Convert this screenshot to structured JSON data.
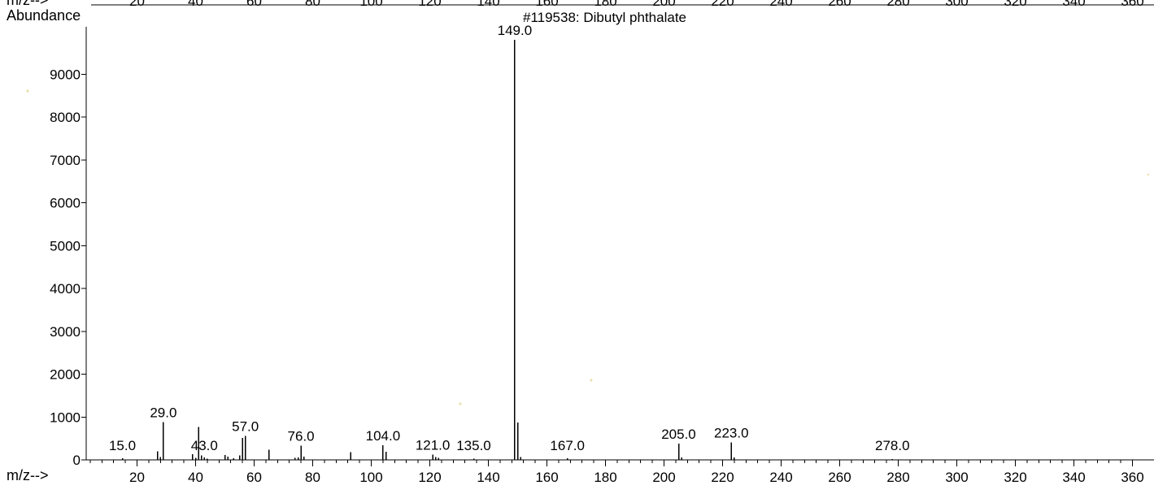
{
  "chart_data": {
    "type": "bar",
    "title": "#119538: Dibutyl phthalate",
    "ylabel": "Abundance",
    "xlabel": "m/z-->",
    "top_axis_label": "m/z-->",
    "xlim": [
      2,
      362
    ],
    "ylim": [
      0,
      10000
    ],
    "yticks": [
      0,
      1000,
      2000,
      3000,
      4000,
      5000,
      6000,
      7000,
      8000,
      9000
    ],
    "ytick_labels": [
      "0",
      "1000",
      "2000",
      "3000",
      "4000",
      "5000",
      "6000",
      "7000",
      "8000",
      "9000"
    ],
    "xticks": [
      20,
      40,
      60,
      80,
      100,
      120,
      140,
      160,
      180,
      200,
      220,
      240,
      260,
      280,
      300,
      320,
      340,
      360
    ],
    "xtick_labels": [
      "20",
      "40",
      "60",
      "80",
      "100",
      "120",
      "140",
      "160",
      "180",
      "200",
      "220",
      "240",
      "260",
      "280",
      "300",
      "320",
      "340",
      "360"
    ],
    "grid": false,
    "peaks": [
      {
        "mz": 15,
        "abundance": 40
      },
      {
        "mz": 27,
        "abundance": 200
      },
      {
        "mz": 28,
        "abundance": 70
      },
      {
        "mz": 29,
        "abundance": 880
      },
      {
        "mz": 39,
        "abundance": 130
      },
      {
        "mz": 40,
        "abundance": 50
      },
      {
        "mz": 41,
        "abundance": 770
      },
      {
        "mz": 42,
        "abundance": 100
      },
      {
        "mz": 43,
        "abundance": 60
      },
      {
        "mz": 44,
        "abundance": 30
      },
      {
        "mz": 50,
        "abundance": 110
      },
      {
        "mz": 51,
        "abundance": 80
      },
      {
        "mz": 53,
        "abundance": 40
      },
      {
        "mz": 55,
        "abundance": 100
      },
      {
        "mz": 56,
        "abundance": 510
      },
      {
        "mz": 57,
        "abundance": 560
      },
      {
        "mz": 65,
        "abundance": 240
      },
      {
        "mz": 74,
        "abundance": 50
      },
      {
        "mz": 75,
        "abundance": 60
      },
      {
        "mz": 76,
        "abundance": 330
      },
      {
        "mz": 77,
        "abundance": 80
      },
      {
        "mz": 93,
        "abundance": 180
      },
      {
        "mz": 104,
        "abundance": 340
      },
      {
        "mz": 105,
        "abundance": 190
      },
      {
        "mz": 121,
        "abundance": 120
      },
      {
        "mz": 122,
        "abundance": 70
      },
      {
        "mz": 123,
        "abundance": 50
      },
      {
        "mz": 135,
        "abundance": 30
      },
      {
        "mz": 149,
        "abundance": 9800
      },
      {
        "mz": 150,
        "abundance": 870
      },
      {
        "mz": 151,
        "abundance": 70
      },
      {
        "mz": 167,
        "abundance": 40
      },
      {
        "mz": 205,
        "abundance": 380
      },
      {
        "mz": 206,
        "abundance": 60
      },
      {
        "mz": 223,
        "abundance": 410
      },
      {
        "mz": 224,
        "abundance": 60
      },
      {
        "mz": 278,
        "abundance": 15
      }
    ],
    "peak_labels": [
      {
        "mz": 15,
        "text": "15.0"
      },
      {
        "mz": 29,
        "text": "29.0"
      },
      {
        "mz": 43,
        "text": "43.0"
      },
      {
        "mz": 57,
        "text": "57.0"
      },
      {
        "mz": 76,
        "text": "76.0"
      },
      {
        "mz": 104,
        "text": "104.0"
      },
      {
        "mz": 121,
        "text": "121.0"
      },
      {
        "mz": 135,
        "text": "135.0"
      },
      {
        "mz": 149,
        "text": "149.0"
      },
      {
        "mz": 167,
        "text": "167.0"
      },
      {
        "mz": 205,
        "text": "205.0"
      },
      {
        "mz": 223,
        "text": "223.0"
      },
      {
        "mz": 278,
        "text": "278.0"
      }
    ]
  }
}
